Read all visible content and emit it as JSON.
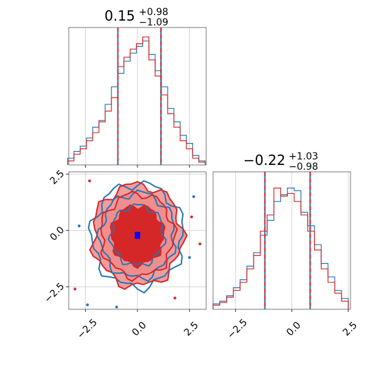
{
  "colors": {
    "series_a": "#1f77b4",
    "series_b": "#d62728",
    "series_b_fill": "#f08c8c",
    "grid": "#c8c8c8",
    "marker": "#0000ff"
  },
  "chart_data": [
    {
      "type": "histogram",
      "panel": "top-left",
      "title": {
        "median": "0.15",
        "plus": "+0.98",
        "minus": "−1.09"
      },
      "xlim": [
        -3.3,
        3.3
      ],
      "quantile_lines": [
        -0.94,
        1.13
      ],
      "x_ticks": [
        -2.5,
        0.0,
        2.5
      ],
      "grid": true,
      "series": [
        {
          "color_key": "series_a",
          "bins": [
            {
              "x": -3.2,
              "y": 0.05
            },
            {
              "x": -2.9,
              "y": 0.1
            },
            {
              "x": -2.6,
              "y": 0.14
            },
            {
              "x": -2.3,
              "y": 0.2
            },
            {
              "x": -2.0,
              "y": 0.28
            },
            {
              "x": -1.7,
              "y": 0.33
            },
            {
              "x": -1.4,
              "y": 0.45
            },
            {
              "x": -1.1,
              "y": 0.58
            },
            {
              "x": -0.8,
              "y": 0.68
            },
            {
              "x": -0.5,
              "y": 0.77
            },
            {
              "x": -0.2,
              "y": 0.83
            },
            {
              "x": 0.1,
              "y": 0.88
            },
            {
              "x": 0.4,
              "y": 0.92
            },
            {
              "x": 0.7,
              "y": 0.82
            },
            {
              "x": 1.0,
              "y": 0.7
            },
            {
              "x": 1.3,
              "y": 0.58
            },
            {
              "x": 1.6,
              "y": 0.42
            },
            {
              "x": 1.9,
              "y": 0.32
            },
            {
              "x": 2.2,
              "y": 0.22
            },
            {
              "x": 2.5,
              "y": 0.16
            },
            {
              "x": 2.8,
              "y": 0.07
            },
            {
              "x": 3.1,
              "y": 0.03
            }
          ]
        },
        {
          "color_key": "series_b",
          "bins": [
            {
              "x": -3.2,
              "y": 0.03
            },
            {
              "x": -2.9,
              "y": 0.08
            },
            {
              "x": -2.6,
              "y": 0.12
            },
            {
              "x": -2.3,
              "y": 0.18
            },
            {
              "x": -2.0,
              "y": 0.24
            },
            {
              "x": -1.7,
              "y": 0.32
            },
            {
              "x": -1.4,
              "y": 0.4
            },
            {
              "x": -1.1,
              "y": 0.5
            },
            {
              "x": -0.8,
              "y": 0.73
            },
            {
              "x": -0.5,
              "y": 0.8
            },
            {
              "x": -0.2,
              "y": 0.86
            },
            {
              "x": 0.1,
              "y": 0.9
            },
            {
              "x": 0.4,
              "y": 0.95
            },
            {
              "x": 0.7,
              "y": 0.78
            },
            {
              "x": 1.0,
              "y": 0.66
            },
            {
              "x": 1.3,
              "y": 0.52
            },
            {
              "x": 1.6,
              "y": 0.38
            },
            {
              "x": 1.9,
              "y": 0.28
            },
            {
              "x": 2.2,
              "y": 0.18
            },
            {
              "x": 2.5,
              "y": 0.12
            },
            {
              "x": 2.8,
              "y": 0.05
            },
            {
              "x": 3.1,
              "y": 0.02
            }
          ]
        }
      ]
    },
    {
      "type": "contour",
      "panel": "bottom-left",
      "xlim": [
        -3.3,
        3.3
      ],
      "ylim": [
        -3.5,
        2.6
      ],
      "x_ticks": [
        -2.5,
        0.0,
        2.5
      ],
      "y_ticks": [
        -2.5,
        0.0,
        2.5
      ],
      "grid": true,
      "center": [
        0.0,
        -0.22
      ],
      "marker": [
        0.0,
        -0.22
      ],
      "levels": [
        {
          "rx": 2.15,
          "ry": 2.25
        },
        {
          "rx": 1.75,
          "ry": 1.85
        },
        {
          "rx": 1.25,
          "ry": 1.3
        }
      ],
      "scatter": [
        {
          "x": -3.0,
          "y": -2.6
        },
        {
          "x": -2.4,
          "y": -3.3
        },
        {
          "x": 2.6,
          "y": 0.6
        },
        {
          "x": 2.5,
          "y": -1.2
        },
        {
          "x": 3.0,
          "y": -0.6
        },
        {
          "x": -2.8,
          "y": 0.2
        },
        {
          "x": 1.8,
          "y": -3.0
        },
        {
          "x": -1.0,
          "y": -3.4
        },
        {
          "x": -2.3,
          "y": 2.2
        },
        {
          "x": 2.7,
          "y": 1.5
        }
      ]
    },
    {
      "type": "histogram",
      "panel": "bottom-right",
      "title": {
        "median": "−0.22",
        "plus": "+1.03",
        "minus": "−0.98"
      },
      "xlim": [
        -3.5,
        2.6
      ],
      "quantile_lines": [
        -1.2,
        0.81
      ],
      "x_ticks": [
        -2.5,
        0.0,
        2.5
      ],
      "grid": true,
      "series": [
        {
          "color_key": "series_a",
          "bins": [
            {
              "x": -3.35,
              "y": 0.04
            },
            {
              "x": -3.05,
              "y": 0.06
            },
            {
              "x": -2.75,
              "y": 0.1
            },
            {
              "x": -2.45,
              "y": 0.16
            },
            {
              "x": -2.15,
              "y": 0.22
            },
            {
              "x": -1.85,
              "y": 0.32
            },
            {
              "x": -1.55,
              "y": 0.42
            },
            {
              "x": -1.25,
              "y": 0.55
            },
            {
              "x": -0.95,
              "y": 0.66
            },
            {
              "x": -0.65,
              "y": 0.8
            },
            {
              "x": -0.35,
              "y": 0.85
            },
            {
              "x": -0.05,
              "y": 0.9
            },
            {
              "x": 0.25,
              "y": 0.88
            },
            {
              "x": 0.55,
              "y": 0.72
            },
            {
              "x": 0.85,
              "y": 0.62
            },
            {
              "x": 1.15,
              "y": 0.48
            },
            {
              "x": 1.45,
              "y": 0.34
            },
            {
              "x": 1.75,
              "y": 0.24
            },
            {
              "x": 2.05,
              "y": 0.14
            },
            {
              "x": 2.35,
              "y": 0.08
            }
          ]
        },
        {
          "color_key": "series_b",
          "bins": [
            {
              "x": -3.35,
              "y": 0.03
            },
            {
              "x": -3.05,
              "y": 0.05
            },
            {
              "x": -2.75,
              "y": 0.09
            },
            {
              "x": -2.45,
              "y": 0.14
            },
            {
              "x": -2.15,
              "y": 0.2
            },
            {
              "x": -1.85,
              "y": 0.3
            },
            {
              "x": -1.55,
              "y": 0.4
            },
            {
              "x": -1.25,
              "y": 0.58
            },
            {
              "x": -0.95,
              "y": 0.7
            },
            {
              "x": -0.65,
              "y": 0.9
            },
            {
              "x": -0.35,
              "y": 0.84
            },
            {
              "x": -0.05,
              "y": 0.86
            },
            {
              "x": 0.25,
              "y": 0.8
            },
            {
              "x": 0.55,
              "y": 0.7
            },
            {
              "x": 0.85,
              "y": 0.58
            },
            {
              "x": 1.15,
              "y": 0.44
            },
            {
              "x": 1.45,
              "y": 0.3
            },
            {
              "x": 1.75,
              "y": 0.2
            },
            {
              "x": 2.05,
              "y": 0.12
            },
            {
              "x": 2.35,
              "y": 0.06
            }
          ]
        }
      ]
    }
  ]
}
